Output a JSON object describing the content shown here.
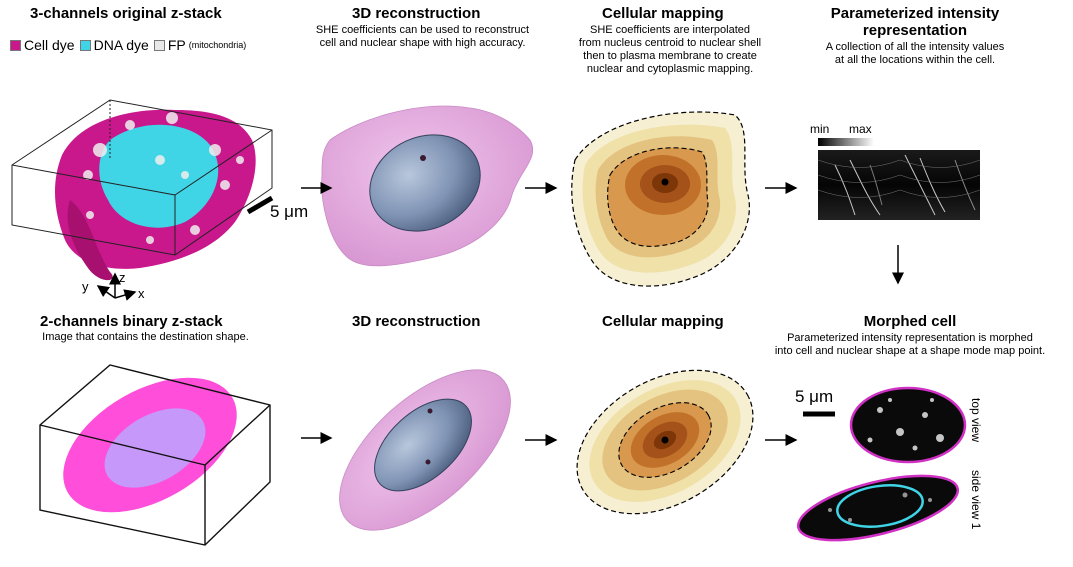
{
  "top": {
    "col1": {
      "title": "3-channels original z-stack",
      "legend": [
        {
          "label": "Cell dye",
          "color": "#c8188c"
        },
        {
          "label": "DNA dye",
          "color": "#3fd4e6"
        },
        {
          "label": "FP",
          "color": "#e8e8e8",
          "sub": "(mitochondria)"
        }
      ],
      "scale_label": "5 μm",
      "axis_labels": {
        "y": "y",
        "z": "z",
        "x": "x"
      }
    },
    "col2": {
      "title": "3D reconstruction",
      "desc_lines": [
        "SHE coefficients can be used to reconstruct",
        "cell and nuclear shape with high accuracy."
      ]
    },
    "col3": {
      "title": "Cellular mapping",
      "desc_lines": [
        "SHE coefficients are interpolated",
        "from nucleus centroid to nuclear shell",
        "then to plasma membrane to create",
        "nuclear and cytoplasmic mapping."
      ]
    },
    "col4": {
      "title_lines": [
        "Parameterized intensity",
        "representation"
      ],
      "desc_lines": [
        "A collection of all the intensity values",
        "at all the locations within the cell."
      ],
      "colorbar": {
        "min": "min",
        "max": "max"
      }
    }
  },
  "bottom": {
    "col1": {
      "title": "2-channels binary z-stack",
      "desc": "Image that contains the destination shape."
    },
    "col2": {
      "title": "3D reconstruction"
    },
    "col3": {
      "title": "Cellular mapping"
    },
    "col4": {
      "title": "Morphed cell",
      "desc_lines": [
        "Parameterized intensity representation is morphed",
        "into cell and nuclear shape at a shape mode map point."
      ],
      "scale_label": "5 μm",
      "views": [
        "top view",
        "side view 1"
      ]
    }
  },
  "colors": {
    "cell_magenta": "#c8188c",
    "dna_cyan": "#3fd4e6",
    "membrane_pink": "#e2a8dc",
    "nucleus_blue": "#7f93b4",
    "binary_magenta": "#ff44d8",
    "map_dark": "#8a3a0a",
    "map_light": "#f2ebc4"
  }
}
